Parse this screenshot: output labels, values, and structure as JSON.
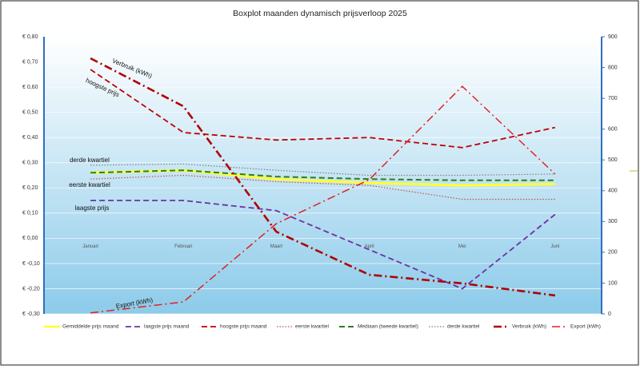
{
  "chart_data": {
    "type": "line",
    "title": "Boxplot maanden dynamisch prijsverloop 2025",
    "categories": [
      "Januari",
      "Februari",
      "Maart",
      "April",
      "Mei",
      "Juni"
    ],
    "ylim": [
      -0.3,
      0.8
    ],
    "yticks": [
      {
        "value": -0.3,
        "label": "€ -0,30"
      },
      {
        "value": -0.2,
        "label": "€ -0,20"
      },
      {
        "value": -0.1,
        "label": "€ -0,10"
      },
      {
        "value": 0,
        "label": "€ 0,00"
      },
      {
        "value": 0.1,
        "label": "€ 0,10"
      },
      {
        "value": 0.2,
        "label": "€ 0,20"
      },
      {
        "value": 0.3,
        "label": "€ 0,30"
      },
      {
        "value": 0.4,
        "label": "€ 0,40"
      },
      {
        "value": 0.5,
        "label": "€ 0,50"
      },
      {
        "value": 0.6,
        "label": "€ 0,60"
      },
      {
        "value": 0.7,
        "label": "€ 0,70"
      },
      {
        "value": 0.8,
        "label": "€ 0,80"
      }
    ],
    "y2lim": [
      0,
      900
    ],
    "y2ticks": [
      0,
      100,
      200,
      300,
      400,
      500,
      600,
      700,
      800,
      900
    ],
    "grid": true,
    "legend": "bottom",
    "series": [
      {
        "name": "Gemiddelde prijs maand",
        "color": "#ffff33",
        "style": "solid",
        "width": 3,
        "values": [
          0.26,
          0.27,
          0.235,
          0.22,
          0.21,
          0.215
        ]
      },
      {
        "name": "laagste prijs maand",
        "color": "#7030a0",
        "style": "dashed",
        "width": 1.8,
        "values": [
          0.15,
          0.15,
          0.11,
          -0.045,
          -0.2,
          0.095
        ]
      },
      {
        "name": "hoogste prijs maand",
        "color": "#c00000",
        "style": "dashed",
        "width": 1.8,
        "values": [
          0.67,
          0.42,
          0.39,
          0.4,
          0.36,
          0.44
        ]
      },
      {
        "name": "eerste kwartiel",
        "color": "#c0504d",
        "style": "dotted",
        "width": 1.2,
        "values": [
          0.235,
          0.25,
          0.225,
          0.21,
          0.155,
          0.155
        ]
      },
      {
        "name": "Mediaan (tweede kwartiel)",
        "color": "#2e7d1e",
        "style": "dashed",
        "width": 2,
        "values": [
          0.26,
          0.27,
          0.245,
          0.235,
          0.23,
          0.23
        ]
      },
      {
        "name": "derde kwartiel",
        "color": "#808080",
        "style": "dotted",
        "width": 1.2,
        "values": [
          0.29,
          0.295,
          0.27,
          0.25,
          0.25,
          0.255
        ]
      },
      {
        "name": "Verbruik (kWh)",
        "color": "#b00000",
        "style": "dashdot",
        "width": 2.6,
        "axis": "y2",
        "values": [
          830,
          674,
          267,
          127,
          99,
          60
        ]
      },
      {
        "name": "Export (kWh)",
        "color": "#e02020",
        "style": "dashdot",
        "width": 1.5,
        "axis": "y2",
        "values": [
          3,
          39,
          293,
          436,
          739,
          454
        ]
      }
    ],
    "annotations": [
      "Verbruik (kWh)",
      "hoogste prijs",
      "derde kwartiel",
      "eerste kwartiel",
      "laagste prijs",
      "Export (kWh)"
    ]
  }
}
